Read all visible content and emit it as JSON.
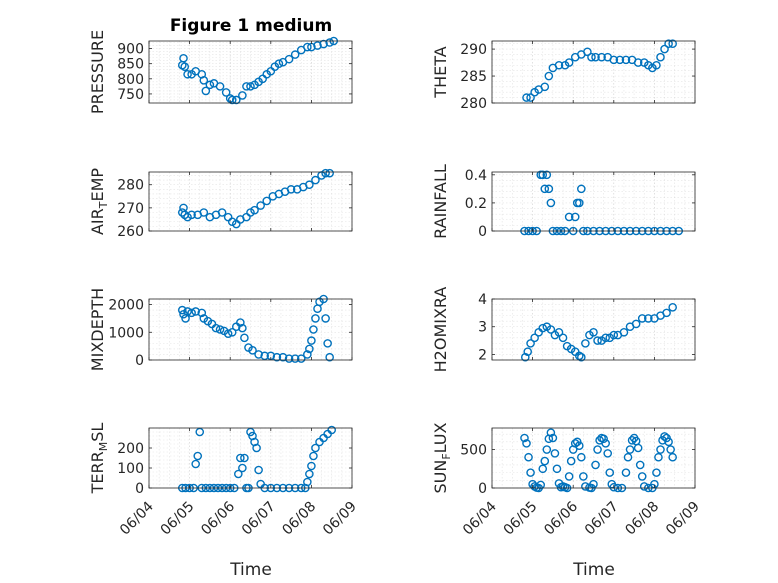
{
  "figure": {
    "title": "Figure 1 medium",
    "xlabel": "Time",
    "x_ticks": [
      "06/04",
      "06/05",
      "06/06",
      "06/07",
      "06/08",
      "06/09"
    ],
    "marker_color": "#0072BD",
    "grid_color": "#c8c8c8"
  },
  "chart_data": [
    {
      "type": "scatter",
      "ylabel": "PRESSURE",
      "xlim": [
        "06/04",
        "06/09"
      ],
      "ylim": [
        720,
        925
      ],
      "yticks": [
        750,
        800,
        850,
        900
      ],
      "points": [
        [
          4.82,
          845
        ],
        [
          4.85,
          868
        ],
        [
          4.88,
          840
        ],
        [
          4.95,
          815
        ],
        [
          5.05,
          815
        ],
        [
          5.15,
          825
        ],
        [
          5.3,
          815
        ],
        [
          5.35,
          795
        ],
        [
          5.4,
          760
        ],
        [
          5.5,
          780
        ],
        [
          5.6,
          785
        ],
        [
          5.75,
          775
        ],
        [
          5.9,
          755
        ],
        [
          6.0,
          735
        ],
        [
          6.05,
          730
        ],
        [
          6.15,
          730
        ],
        [
          6.3,
          745
        ],
        [
          6.4,
          775
        ],
        [
          6.5,
          775
        ],
        [
          6.6,
          780
        ],
        [
          6.7,
          790
        ],
        [
          6.8,
          800
        ],
        [
          6.9,
          815
        ],
        [
          7.0,
          825
        ],
        [
          7.1,
          840
        ],
        [
          7.2,
          850
        ],
        [
          7.3,
          855
        ],
        [
          7.45,
          865
        ],
        [
          7.6,
          880
        ],
        [
          7.75,
          895
        ],
        [
          7.9,
          905
        ],
        [
          8.0,
          905
        ],
        [
          8.15,
          910
        ],
        [
          8.3,
          915
        ],
        [
          8.45,
          920
        ],
        [
          8.55,
          925
        ]
      ]
    },
    {
      "type": "scatter",
      "ylabel": "THETA",
      "xlim": [
        "06/04",
        "06/09"
      ],
      "ylim": [
        280,
        291.5
      ],
      "yticks": [
        280,
        285,
        290
      ],
      "points": [
        [
          4.85,
          281
        ],
        [
          4.95,
          281
        ],
        [
          5.05,
          282
        ],
        [
          5.15,
          282.5
        ],
        [
          5.3,
          283
        ],
        [
          5.4,
          285
        ],
        [
          5.5,
          286.5
        ],
        [
          5.65,
          287
        ],
        [
          5.8,
          287
        ],
        [
          5.9,
          287.5
        ],
        [
          6.05,
          288.5
        ],
        [
          6.2,
          289
        ],
        [
          6.35,
          289.5
        ],
        [
          6.45,
          288.5
        ],
        [
          6.55,
          288.5
        ],
        [
          6.7,
          288.5
        ],
        [
          6.85,
          288.5
        ],
        [
          7.0,
          288
        ],
        [
          7.15,
          288
        ],
        [
          7.3,
          288
        ],
        [
          7.45,
          288
        ],
        [
          7.6,
          287.5
        ],
        [
          7.75,
          287.5
        ],
        [
          7.85,
          287
        ],
        [
          7.95,
          286.5
        ],
        [
          8.05,
          287
        ],
        [
          8.15,
          288.5
        ],
        [
          8.25,
          290
        ],
        [
          8.35,
          291
        ],
        [
          8.45,
          291
        ]
      ]
    },
    {
      "type": "scatter",
      "ylabel": "AIR_TEMP",
      "xlim": [
        "06/04",
        "06/09"
      ],
      "ylim": [
        260,
        285.5
      ],
      "yticks": [
        260,
        270,
        280
      ],
      "points": [
        [
          4.82,
          268
        ],
        [
          4.85,
          270
        ],
        [
          4.88,
          267
        ],
        [
          4.95,
          266
        ],
        [
          5.05,
          267
        ],
        [
          5.2,
          267
        ],
        [
          5.35,
          268
        ],
        [
          5.5,
          266
        ],
        [
          5.65,
          267
        ],
        [
          5.8,
          268
        ],
        [
          5.95,
          266
        ],
        [
          6.05,
          264
        ],
        [
          6.15,
          263
        ],
        [
          6.25,
          265
        ],
        [
          6.4,
          266
        ],
        [
          6.5,
          268
        ],
        [
          6.6,
          269
        ],
        [
          6.75,
          271
        ],
        [
          6.9,
          273
        ],
        [
          7.05,
          275
        ],
        [
          7.2,
          276
        ],
        [
          7.35,
          277
        ],
        [
          7.5,
          278
        ],
        [
          7.65,
          278
        ],
        [
          7.8,
          279
        ],
        [
          7.95,
          280
        ],
        [
          8.1,
          282
        ],
        [
          8.25,
          284
        ],
        [
          8.35,
          285
        ],
        [
          8.45,
          285
        ]
      ]
    },
    {
      "type": "scatter",
      "ylabel": "RAINFALL",
      "xlim": [
        "06/04",
        "06/09"
      ],
      "ylim": [
        0,
        0.42
      ],
      "yticks": [
        0,
        0.2,
        0.4
      ],
      "points": [
        [
          4.8,
          0
        ],
        [
          4.9,
          0
        ],
        [
          5.0,
          0
        ],
        [
          5.1,
          0
        ],
        [
          5.2,
          0.4
        ],
        [
          5.25,
          0.4
        ],
        [
          5.3,
          0.3
        ],
        [
          5.35,
          0.4
        ],
        [
          5.4,
          0.3
        ],
        [
          5.45,
          0.2
        ],
        [
          5.5,
          0
        ],
        [
          5.6,
          0
        ],
        [
          5.7,
          0
        ],
        [
          5.8,
          0
        ],
        [
          5.9,
          0.1
        ],
        [
          6.0,
          0
        ],
        [
          6.05,
          0.1
        ],
        [
          6.1,
          0.2
        ],
        [
          6.15,
          0.2
        ],
        [
          6.2,
          0.3
        ],
        [
          6.25,
          0
        ],
        [
          6.35,
          0
        ],
        [
          6.5,
          0
        ],
        [
          6.65,
          0
        ],
        [
          6.8,
          0
        ],
        [
          6.95,
          0
        ],
        [
          7.1,
          0
        ],
        [
          7.25,
          0
        ],
        [
          7.4,
          0
        ],
        [
          7.55,
          0
        ],
        [
          7.7,
          0
        ],
        [
          7.85,
          0
        ],
        [
          8.0,
          0
        ],
        [
          8.15,
          0
        ],
        [
          8.3,
          0
        ],
        [
          8.45,
          0
        ],
        [
          8.6,
          0
        ]
      ]
    },
    {
      "type": "scatter",
      "ylabel": "MIXDEPTH",
      "xlim": [
        "06/04",
        "06/09"
      ],
      "ylim": [
        0,
        2200
      ],
      "yticks": [
        0,
        1000,
        2000
      ],
      "points": [
        [
          4.82,
          1800
        ],
        [
          4.85,
          1650
        ],
        [
          4.9,
          1500
        ],
        [
          4.95,
          1750
        ],
        [
          5.05,
          1700
        ],
        [
          5.15,
          1750
        ],
        [
          5.3,
          1700
        ],
        [
          5.35,
          1500
        ],
        [
          5.45,
          1400
        ],
        [
          5.55,
          1300
        ],
        [
          5.65,
          1150
        ],
        [
          5.75,
          1100
        ],
        [
          5.85,
          1050
        ],
        [
          5.95,
          950
        ],
        [
          6.05,
          1000
        ],
        [
          6.15,
          1200
        ],
        [
          6.25,
          1350
        ],
        [
          6.3,
          1150
        ],
        [
          6.35,
          800
        ],
        [
          6.45,
          450
        ],
        [
          6.55,
          350
        ],
        [
          6.7,
          200
        ],
        [
          6.85,
          150
        ],
        [
          7.0,
          150
        ],
        [
          7.15,
          100
        ],
        [
          7.3,
          100
        ],
        [
          7.45,
          50
        ],
        [
          7.6,
          50
        ],
        [
          7.75,
          50
        ],
        [
          7.9,
          200
        ],
        [
          7.95,
          400
        ],
        [
          8.0,
          700
        ],
        [
          8.05,
          1100
        ],
        [
          8.1,
          1500
        ],
        [
          8.15,
          1850
        ],
        [
          8.2,
          2100
        ],
        [
          8.3,
          2200
        ],
        [
          8.35,
          1500
        ],
        [
          8.4,
          600
        ],
        [
          8.45,
          100
        ]
      ]
    },
    {
      "type": "scatter",
      "ylabel": "H2OMIXRA",
      "xlim": [
        "06/04",
        "06/09"
      ],
      "ylim": [
        1.8,
        4
      ],
      "yticks": [
        2,
        3,
        4
      ],
      "points": [
        [
          4.82,
          1.9
        ],
        [
          4.88,
          2.1
        ],
        [
          4.95,
          2.4
        ],
        [
          5.05,
          2.6
        ],
        [
          5.15,
          2.8
        ],
        [
          5.25,
          2.95
        ],
        [
          5.35,
          3.0
        ],
        [
          5.45,
          2.9
        ],
        [
          5.55,
          2.7
        ],
        [
          5.65,
          2.8
        ],
        [
          5.75,
          2.6
        ],
        [
          5.85,
          2.3
        ],
        [
          5.95,
          2.2
        ],
        [
          6.05,
          2.1
        ],
        [
          6.15,
          1.95
        ],
        [
          6.2,
          1.9
        ],
        [
          6.3,
          2.4
        ],
        [
          6.4,
          2.7
        ],
        [
          6.5,
          2.8
        ],
        [
          6.6,
          2.5
        ],
        [
          6.7,
          2.5
        ],
        [
          6.8,
          2.6
        ],
        [
          6.9,
          2.6
        ],
        [
          7.0,
          2.7
        ],
        [
          7.1,
          2.7
        ],
        [
          7.25,
          2.8
        ],
        [
          7.4,
          3.0
        ],
        [
          7.55,
          3.1
        ],
        [
          7.7,
          3.3
        ],
        [
          7.85,
          3.3
        ],
        [
          8.0,
          3.3
        ],
        [
          8.15,
          3.4
        ],
        [
          8.3,
          3.5
        ],
        [
          8.45,
          3.7
        ]
      ]
    },
    {
      "type": "scatter",
      "ylabel": "TERR_MSL",
      "xlim": [
        "06/04",
        "06/09"
      ],
      "ylim": [
        0,
        300
      ],
      "yticks": [
        0,
        100,
        200
      ],
      "points": [
        [
          4.82,
          0
        ],
        [
          4.9,
          0
        ],
        [
          5.0,
          0
        ],
        [
          5.1,
          0
        ],
        [
          5.15,
          120
        ],
        [
          5.2,
          160
        ],
        [
          5.25,
          280
        ],
        [
          5.3,
          0
        ],
        [
          5.4,
          0
        ],
        [
          5.5,
          0
        ],
        [
          5.6,
          0
        ],
        [
          5.7,
          0
        ],
        [
          5.8,
          0
        ],
        [
          5.9,
          0
        ],
        [
          6.0,
          0
        ],
        [
          6.1,
          0
        ],
        [
          6.2,
          70
        ],
        [
          6.25,
          150
        ],
        [
          6.3,
          100
        ],
        [
          6.35,
          150
        ],
        [
          6.4,
          0
        ],
        [
          6.45,
          0
        ],
        [
          6.5,
          280
        ],
        [
          6.55,
          260
        ],
        [
          6.6,
          230
        ],
        [
          6.65,
          200
        ],
        [
          6.7,
          90
        ],
        [
          6.75,
          20
        ],
        [
          6.85,
          0
        ],
        [
          7.0,
          0
        ],
        [
          7.15,
          0
        ],
        [
          7.3,
          0
        ],
        [
          7.45,
          0
        ],
        [
          7.6,
          0
        ],
        [
          7.75,
          0
        ],
        [
          7.85,
          0
        ],
        [
          7.9,
          30
        ],
        [
          7.95,
          70
        ],
        [
          8.0,
          110
        ],
        [
          8.05,
          160
        ],
        [
          8.1,
          200
        ],
        [
          8.2,
          230
        ],
        [
          8.3,
          250
        ],
        [
          8.4,
          270
        ],
        [
          8.5,
          290
        ]
      ]
    },
    {
      "type": "scatter",
      "ylabel": "SUN_FLUX",
      "xlim": [
        "06/04",
        "06/09"
      ],
      "ylim": [
        0,
        780
      ],
      "yticks": [
        0,
        500
      ],
      "points": [
        [
          4.8,
          650
        ],
        [
          4.85,
          580
        ],
        [
          4.9,
          400
        ],
        [
          4.95,
          200
        ],
        [
          5.0,
          50
        ],
        [
          5.05,
          20
        ],
        [
          5.1,
          5
        ],
        [
          5.15,
          0
        ],
        [
          5.2,
          40
        ],
        [
          5.25,
          250
        ],
        [
          5.3,
          350
        ],
        [
          5.35,
          500
        ],
        [
          5.4,
          640
        ],
        [
          5.45,
          720
        ],
        [
          5.5,
          650
        ],
        [
          5.55,
          450
        ],
        [
          5.6,
          250
        ],
        [
          5.65,
          60
        ],
        [
          5.7,
          10
        ],
        [
          5.75,
          20
        ],
        [
          5.8,
          10
        ],
        [
          5.85,
          0
        ],
        [
          5.9,
          150
        ],
        [
          5.95,
          350
        ],
        [
          6.0,
          500
        ],
        [
          6.05,
          580
        ],
        [
          6.1,
          600
        ],
        [
          6.15,
          550
        ],
        [
          6.2,
          400
        ],
        [
          6.25,
          150
        ],
        [
          6.3,
          20
        ],
        [
          6.4,
          5
        ],
        [
          6.45,
          0
        ],
        [
          6.5,
          50
        ],
        [
          6.55,
          300
        ],
        [
          6.6,
          500
        ],
        [
          6.65,
          620
        ],
        [
          6.7,
          650
        ],
        [
          6.75,
          640
        ],
        [
          6.8,
          580
        ],
        [
          6.85,
          450
        ],
        [
          6.9,
          200
        ],
        [
          6.95,
          50
        ],
        [
          7.0,
          10
        ],
        [
          7.1,
          0
        ],
        [
          7.2,
          0
        ],
        [
          7.3,
          200
        ],
        [
          7.35,
          400
        ],
        [
          7.4,
          500
        ],
        [
          7.45,
          620
        ],
        [
          7.5,
          650
        ],
        [
          7.55,
          610
        ],
        [
          7.6,
          520
        ],
        [
          7.65,
          300
        ],
        [
          7.7,
          150
        ],
        [
          7.75,
          20
        ],
        [
          7.85,
          0
        ],
        [
          7.95,
          0
        ],
        [
          8.0,
          50
        ],
        [
          8.05,
          200
        ],
        [
          8.1,
          400
        ],
        [
          8.15,
          500
        ],
        [
          8.2,
          620
        ],
        [
          8.25,
          670
        ],
        [
          8.3,
          650
        ],
        [
          8.35,
          600
        ],
        [
          8.4,
          500
        ],
        [
          8.45,
          400
        ]
      ]
    }
  ]
}
